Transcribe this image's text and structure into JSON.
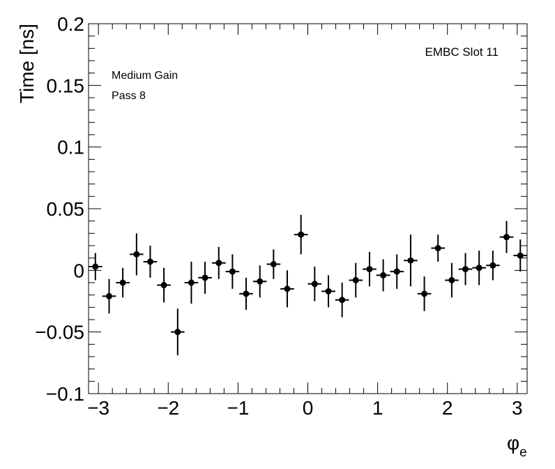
{
  "chart_data": {
    "type": "scatter",
    "style": "error bars with filled circle markers",
    "xlabel": "φ",
    "xlabel_subscript": "e",
    "ylabel": "Time [ns]",
    "xlim": [
      -3.1416,
      3.1416
    ],
    "ylim": [
      -0.1,
      0.2
    ],
    "x_ticks": [
      -3,
      -2,
      -1,
      0,
      1,
      2,
      3
    ],
    "x_tick_labels": [
      "−3",
      "−2",
      "−1",
      "0",
      "1",
      "2",
      "3"
    ],
    "y_ticks": [
      -0.1,
      -0.05,
      0,
      0.05,
      0.1,
      0.15,
      0.2
    ],
    "y_tick_labels": [
      "−0.1",
      "−0.05",
      "0",
      "0.05",
      "0.1",
      "0.15",
      "0.2"
    ],
    "grid": false,
    "annotations": [
      "EMBC Slot 11",
      "Medium Gain",
      "Pass 8"
    ],
    "x_bin_half_width": 0.098,
    "x": [
      -3.044,
      -2.847,
      -2.651,
      -2.454,
      -2.258,
      -2.062,
      -1.865,
      -1.669,
      -1.473,
      -1.276,
      -1.08,
      -0.884,
      -0.687,
      -0.491,
      -0.295,
      -0.098,
      0.098,
      0.295,
      0.491,
      0.687,
      0.884,
      1.08,
      1.276,
      1.473,
      1.669,
      1.865,
      2.062,
      2.258,
      2.454,
      2.651,
      2.847,
      3.044
    ],
    "y": [
      0.003,
      -0.021,
      -0.01,
      0.013,
      0.007,
      -0.012,
      -0.05,
      -0.01,
      -0.006,
      0.006,
      -0.001,
      -0.019,
      -0.009,
      0.005,
      -0.015,
      0.029,
      -0.011,
      -0.017,
      -0.024,
      -0.008,
      0.001,
      -0.004,
      -0.001,
      0.008,
      -0.019,
      0.018,
      -0.008,
      0.001,
      0.002,
      0.004,
      0.027,
      0.012
    ],
    "y_err": [
      0.011,
      0.014,
      0.012,
      0.017,
      0.013,
      0.014,
      0.019,
      0.017,
      0.013,
      0.013,
      0.014,
      0.013,
      0.013,
      0.012,
      0.015,
      0.016,
      0.014,
      0.013,
      0.014,
      0.014,
      0.014,
      0.013,
      0.014,
      0.021,
      0.014,
      0.011,
      0.014,
      0.013,
      0.014,
      0.012,
      0.013,
      0.013
    ]
  }
}
